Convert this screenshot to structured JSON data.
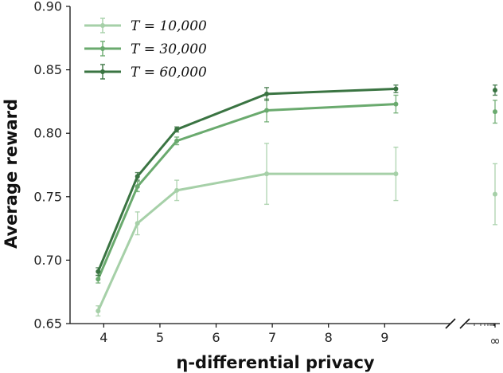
{
  "chart_data": {
    "type": "line",
    "xlabel": "η-differential privacy",
    "ylabel": "Average reward",
    "ylim": [
      0.65,
      0.9
    ],
    "xlim": [
      3.4,
      10.2
    ],
    "xticks": [
      4,
      5,
      6,
      7,
      8,
      9
    ],
    "xtick_labels": [
      "4",
      "5",
      "6",
      "7",
      "8",
      "9"
    ],
    "yticks": [
      0.65,
      0.7,
      0.75,
      0.8,
      0.85,
      0.9
    ],
    "ytick_labels": [
      "0.65",
      "0.70",
      "0.75",
      "0.80",
      "0.85",
      "0.90"
    ],
    "infinity_label": "∞",
    "legend_position": "top-left",
    "grid": false,
    "x": [
      3.9,
      4.6,
      5.3,
      6.9,
      9.2
    ],
    "series": [
      {
        "name": "T = 10,000",
        "color": "#a6d0a8",
        "values": [
          0.66,
          0.729,
          0.755,
          0.768,
          0.768
        ],
        "errors": [
          0.004,
          0.009,
          0.008,
          0.024,
          0.021
        ],
        "infinity_value": 0.752,
        "infinity_error": 0.024
      },
      {
        "name": "T = 30,000",
        "color": "#6aaa6e",
        "values": [
          0.685,
          0.758,
          0.794,
          0.818,
          0.823
        ],
        "errors": [
          0.003,
          0.004,
          0.003,
          0.009,
          0.007
        ],
        "infinity_value": 0.817,
        "infinity_error": 0.009
      },
      {
        "name": "T = 60,000",
        "color": "#3a7442",
        "values": [
          0.691,
          0.766,
          0.803,
          0.831,
          0.835
        ],
        "errors": [
          0.003,
          0.003,
          0.002,
          0.005,
          0.003
        ],
        "infinity_value": 0.834,
        "infinity_error": 0.004
      }
    ]
  }
}
